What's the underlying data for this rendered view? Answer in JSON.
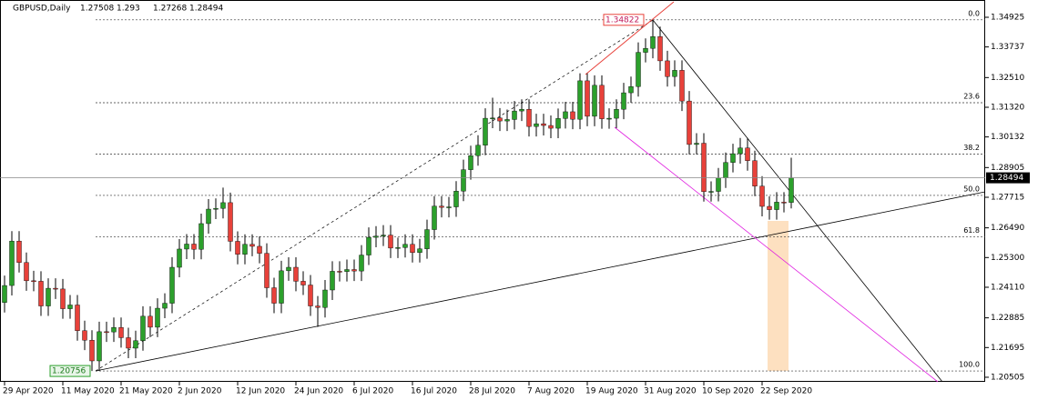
{
  "chart_data": {
    "type": "candlestick",
    "title": "GBPUSD,Daily",
    "categories": [
      "29 Apr 2020",
      null,
      null,
      null,
      null,
      null,
      null,
      null,
      "11 May 2020",
      null,
      null,
      null,
      null,
      null,
      null,
      null,
      "21 May 2020",
      null,
      null,
      null,
      null,
      null,
      null,
      null,
      "2 Jun 2020",
      null,
      null,
      null,
      null,
      null,
      null,
      null,
      "12 Jun 2020",
      null,
      null,
      null,
      null,
      null,
      null,
      null,
      "24 Jun 2020",
      null,
      null,
      null,
      null,
      null,
      null,
      null,
      "6 Jul 2020",
      null,
      null,
      null,
      null,
      null,
      null,
      null,
      "16 Jul 2020",
      null,
      null,
      null,
      null,
      null,
      null,
      null,
      "28 Jul 2020",
      null,
      null,
      null,
      null,
      null,
      null,
      null,
      "7 Aug 2020",
      null,
      null,
      null,
      null,
      null,
      null,
      null,
      "19 Aug 2020",
      null,
      null,
      null,
      null,
      null,
      null,
      null,
      "31 Aug 2020",
      null,
      null,
      null,
      null,
      null,
      null,
      null,
      "10 Sep 2020",
      null,
      null,
      null,
      null,
      null,
      null,
      null,
      "22 Sep 2020",
      null,
      null,
      null,
      null
    ],
    "open": [
      1.235,
      1.2418,
      1.2596,
      1.251,
      1.2437,
      1.2435,
      1.2336,
      1.2407,
      1.2404,
      1.2325,
      1.234,
      1.2237,
      1.2199,
      1.2116,
      1.2233,
      1.2232,
      1.225,
      1.2209,
      1.2167,
      1.2197,
      1.2295,
      1.2251,
      1.2327,
      1.2347,
      1.2491,
      1.2564,
      1.2584,
      1.2563,
      1.2666,
      1.2724,
      1.2727,
      1.275,
      1.2595,
      1.2543,
      1.2583,
      1.2575,
      1.2547,
      1.2409,
      1.2347,
      1.2477,
      1.2491,
      1.2435,
      1.242,
      1.2336,
      1.233,
      1.24,
      1.2475,
      1.2474,
      1.2482,
      1.2476,
      1.254,
      1.2611,
      1.2616,
      1.262,
      1.2568,
      1.257,
      1.2583,
      1.255,
      1.2565,
      1.2642,
      1.2736,
      1.2731,
      1.2733,
      1.2796,
      1.2882,
      1.2938,
      1.298,
      1.3088,
      1.3089,
      1.3077,
      1.3083,
      1.3117,
      1.3124,
      1.3055,
      1.3066,
      1.3059,
      1.3048,
      1.3087,
      1.3114,
      1.3084,
      1.3238,
      1.3096,
      1.322,
      1.3086,
      1.3088,
      1.3124,
      1.319,
      1.3215,
      1.3352,
      1.3368,
      1.3415,
      1.3318,
      1.3255,
      1.328,
      1.3157,
      1.2983,
      1.2988,
      1.2794,
      1.2795,
      1.2849,
      1.2911,
      1.2946,
      1.2969,
      1.2918,
      1.2816,
      1.2735,
      1.2722,
      1.2752,
      1.27508
    ],
    "high": [
      1.2458,
      1.2636,
      1.2636,
      1.255,
      1.2477,
      1.2475,
      1.2447,
      1.2447,
      1.2444,
      1.238,
      1.238,
      1.2277,
      1.2239,
      1.2273,
      1.2273,
      1.229,
      1.229,
      1.2249,
      1.2237,
      1.2335,
      1.2335,
      1.2367,
      1.2387,
      1.2531,
      1.2604,
      1.2624,
      1.2624,
      1.2706,
      1.2764,
      1.2767,
      1.281,
      1.279,
      1.2635,
      1.2623,
      1.2623,
      1.2615,
      1.2587,
      1.2449,
      1.2517,
      1.2531,
      1.2531,
      1.2475,
      1.246,
      1.2376,
      1.244,
      1.2515,
      1.2515,
      1.2522,
      1.2522,
      1.258,
      1.2651,
      1.2656,
      1.266,
      1.266,
      1.261,
      1.2623,
      1.2623,
      1.2605,
      1.2682,
      1.2776,
      1.2776,
      1.2773,
      1.2836,
      1.2922,
      1.2978,
      1.302,
      1.3128,
      1.317,
      1.3129,
      1.3123,
      1.3157,
      1.3164,
      1.3164,
      1.3106,
      1.3106,
      1.3099,
      1.3127,
      1.3154,
      1.3154,
      1.3268,
      1.3268,
      1.326,
      1.326,
      1.3128,
      1.3164,
      1.323,
      1.3255,
      1.3392,
      1.3408,
      1.34822,
      1.3455,
      1.3358,
      1.332,
      1.332,
      1.3197,
      1.3028,
      1.3028,
      1.2835,
      1.2889,
      1.2951,
      1.2986,
      1.3009,
      1.3009,
      1.2958,
      1.2856,
      1.2775,
      1.2792,
      1.2792,
      1.293
    ],
    "low": [
      1.231,
      1.2378,
      1.247,
      1.2397,
      1.2395,
      1.2296,
      1.2296,
      1.2364,
      1.2285,
      1.2285,
      1.2197,
      1.2159,
      1.20756,
      1.2076,
      1.2192,
      1.2192,
      1.2169,
      1.2127,
      1.2127,
      1.2157,
      1.2211,
      1.2211,
      1.2287,
      1.2307,
      1.2451,
      1.2524,
      1.2523,
      1.2523,
      1.2626,
      1.2684,
      1.2687,
      1.2555,
      1.2503,
      1.2503,
      1.2535,
      1.2507,
      1.2369,
      1.2307,
      1.2307,
      1.2437,
      1.2395,
      1.238,
      1.2296,
      1.2252,
      1.229,
      1.236,
      1.2434,
      1.2434,
      1.2436,
      1.2436,
      1.25,
      1.2571,
      1.2576,
      1.2528,
      1.2528,
      1.253,
      1.251,
      1.251,
      1.2525,
      1.2602,
      1.2691,
      1.2691,
      1.2693,
      1.2756,
      1.2842,
      1.2898,
      1.294,
      1.3048,
      1.3037,
      1.3037,
      1.3043,
      1.3077,
      1.3015,
      1.3015,
      1.3019,
      1.3008,
      1.3008,
      1.3047,
      1.3044,
      1.3044,
      1.3056,
      1.3056,
      1.3046,
      1.3046,
      1.3048,
      1.3084,
      1.315,
      1.3175,
      1.3312,
      1.3328,
      1.3278,
      1.3215,
      1.3215,
      1.3117,
      1.2943,
      1.2943,
      1.2754,
      1.2754,
      1.2755,
      1.2809,
      1.2871,
      1.2906,
      1.2878,
      1.2776,
      1.2695,
      1.2682,
      1.2682,
      1.2711,
      1.27268
    ],
    "close": [
      1.2418,
      1.2596,
      1.251,
      1.2437,
      1.2435,
      1.2336,
      1.2407,
      1.2404,
      1.2325,
      1.234,
      1.2237,
      1.2199,
      1.2116,
      1.2233,
      1.2232,
      1.225,
      1.2209,
      1.2167,
      1.2197,
      1.2295,
      1.2251,
      1.2327,
      1.2347,
      1.2491,
      1.2564,
      1.2584,
      1.2563,
      1.2666,
      1.2724,
      1.2727,
      1.275,
      1.2595,
      1.2543,
      1.2583,
      1.2575,
      1.2547,
      1.2409,
      1.2347,
      1.2477,
      1.2491,
      1.2435,
      1.242,
      1.2336,
      1.233,
      1.24,
      1.2475,
      1.2474,
      1.2482,
      1.2476,
      1.254,
      1.2611,
      1.2616,
      1.262,
      1.2568,
      1.257,
      1.2583,
      1.255,
      1.2565,
      1.2642,
      1.2736,
      1.2731,
      1.2733,
      1.2796,
      1.2882,
      1.2938,
      1.298,
      1.3088,
      1.3089,
      1.3077,
      1.3083,
      1.3117,
      1.3124,
      1.3055,
      1.3066,
      1.3059,
      1.3048,
      1.3087,
      1.3114,
      1.3084,
      1.3238,
      1.3096,
      1.322,
      1.3086,
      1.3088,
      1.3124,
      1.319,
      1.3215,
      1.3352,
      1.3368,
      1.3415,
      1.3318,
      1.3255,
      1.328,
      1.3157,
      1.2983,
      1.2988,
      1.2794,
      1.2795,
      1.2849,
      1.2911,
      1.2946,
      1.2969,
      1.2918,
      1.2816,
      1.2735,
      1.2722,
      1.2752,
      1.27508,
      1.28494
    ],
    "up_color": "#2ca02c",
    "down_color": "#e8413a",
    "ylim": [
      1.20322,
      1.35617
    ],
    "yticks": [
      1.34925,
      1.33737,
      {
        "value": 1.3251,
        "label": "1.32510"
      },
      {
        "value": 1.3132,
        "label": "1.31320"
      },
      1.30132,
      1.28905,
      1.27715,
      {
        "value": 1.2649,
        "label": "1.26490"
      },
      {
        "value": 1.253,
        "label": "1.25300"
      },
      {
        "value": 1.2411,
        "label": "1.24110"
      },
      1.22885,
      1.21695,
      1.20505
    ],
    "fib_levels": [
      {
        "label": "0.0",
        "price": 1.34822
      },
      {
        "label": "23.6",
        "price": 1.31503
      },
      {
        "label": "38.2",
        "price": 1.29449
      },
      {
        "label": "50.0",
        "price": 1.27789
      },
      {
        "label": "61.8",
        "price": 1.26129
      },
      {
        "label": "100.0",
        "price": 1.20756
      }
    ]
  }
}
